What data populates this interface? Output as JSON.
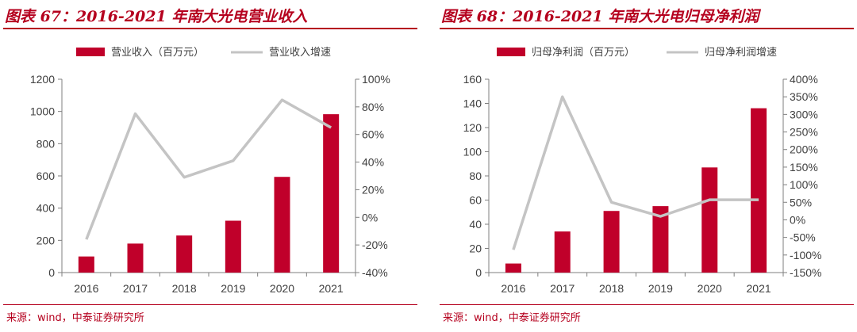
{
  "colors": {
    "bar": "#c0002a",
    "line": "#c4c4c4",
    "axis": "#7f7f7f",
    "text": "#404040",
    "brand": "#b5001e"
  },
  "chart_data": [
    {
      "type": "bar",
      "title": "图表 67：2016-2021 年南大光电营业收入",
      "categories": [
        "2016",
        "2017",
        "2018",
        "2019",
        "2020",
        "2021"
      ],
      "series": [
        {
          "name": "营业收入（百万元）",
          "type": "bar",
          "axis": "left",
          "values": [
            100,
            180,
            230,
            322,
            594,
            983
          ]
        },
        {
          "name": "营业收入增速",
          "type": "line",
          "axis": "right",
          "values": [
            -16,
            75,
            29,
            41,
            85,
            65
          ]
        }
      ],
      "ylim": [
        0,
        1200
      ],
      "yticks": [
        "0",
        "200",
        "400",
        "600",
        "800",
        "1000",
        "1200"
      ],
      "y2lim": [
        -40,
        100
      ],
      "y2ticks": [
        "-40%",
        "-20%",
        "0%",
        "20%",
        "40%",
        "60%",
        "80%",
        "100%"
      ],
      "source": "来源：wind，中泰证券研究所"
    },
    {
      "type": "bar",
      "title": "图表 68：2016-2021 年南大光电归母净利润",
      "categories": [
        "2016",
        "2017",
        "2018",
        "2019",
        "2020",
        "2021"
      ],
      "series": [
        {
          "name": "归母净利润（百万元）",
          "type": "bar",
          "axis": "left",
          "values": [
            7.5,
            34,
            51,
            55,
            87,
            136
          ]
        },
        {
          "name": "归母净利润增速",
          "type": "line",
          "axis": "right",
          "values": [
            -85,
            350,
            50,
            10,
            57,
            57
          ]
        }
      ],
      "ylim": [
        0,
        160
      ],
      "yticks": [
        "0",
        "20",
        "40",
        "60",
        "80",
        "100",
        "120",
        "140",
        "160"
      ],
      "y2lim": [
        -150,
        400
      ],
      "y2ticks": [
        "-150%",
        "-100%",
        "-50%",
        "0%",
        "50%",
        "100%",
        "150%",
        "200%",
        "250%",
        "300%",
        "350%",
        "400%"
      ],
      "source": "来源：wind，中泰证券研究所"
    }
  ]
}
